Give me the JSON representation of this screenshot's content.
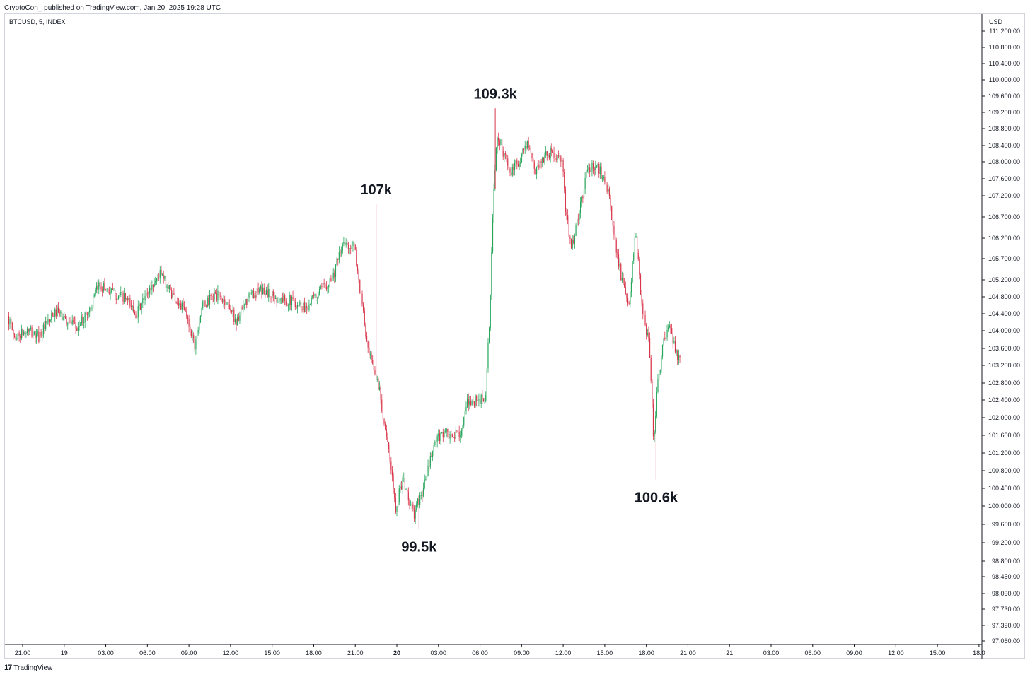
{
  "header": {
    "caption": "CryptoCon_ published on TradingView.com, Jan 20, 2025 19:28 UTC",
    "symbol": "BTCUSD, 5, INDEX",
    "currency": "USD"
  },
  "footer": {
    "brand": "TradingView",
    "logo": "tradingview-logo-icon"
  },
  "colors": {
    "up": "#26a65b",
    "down": "#d9364b",
    "axis": "#131722",
    "grid": "#e0e3eb"
  },
  "chart_data": {
    "type": "candlestick",
    "title": "",
    "xlabel": "",
    "ylabel": "",
    "y_tick_labels": [
      "111,200.00",
      "110,800.00",
      "110,400.00",
      "110,000.00",
      "109,600.00",
      "109,200.00",
      "108,800.00",
      "108,400.00",
      "108,000.00",
      "107,600.00",
      "107,200.00",
      "106,700.00",
      "106,200.00",
      "105,700.00",
      "105,200.00",
      "104,800.00",
      "104,400.00",
      "104,000.00",
      "103,600.00",
      "103,200.00",
      "102,800.00",
      "102,400.00",
      "102,000.00",
      "101,600.00",
      "101,200.00",
      "100,800.00",
      "100,400.00",
      "100,000.00",
      "99,600.00",
      "99,200.00",
      "98,800.00",
      "98,450.00",
      "98,090.00",
      "97,730.00",
      "97,390.00",
      "97,060.00"
    ],
    "y_ticks": [
      111200,
      110800,
      110400,
      110000,
      109600,
      109200,
      108800,
      108400,
      108000,
      107600,
      107200,
      106700,
      106200,
      105700,
      105200,
      104800,
      104400,
      104000,
      103600,
      103200,
      102800,
      102400,
      102000,
      101600,
      101200,
      100800,
      100400,
      100000,
      99600,
      99200,
      98800,
      98450,
      98090,
      97730,
      97390,
      97060
    ],
    "x_ticks": [
      {
        "hour": 21,
        "label": "21:00",
        "bold": false
      },
      {
        "hour": 24,
        "label": "19",
        "bold": false
      },
      {
        "hour": 27,
        "label": "03:00",
        "bold": false
      },
      {
        "hour": 30,
        "label": "06:00",
        "bold": false
      },
      {
        "hour": 33,
        "label": "09:00",
        "bold": false
      },
      {
        "hour": 36,
        "label": "12:00",
        "bold": false
      },
      {
        "hour": 39,
        "label": "15:00",
        "bold": false
      },
      {
        "hour": 42,
        "label": "18:00",
        "bold": false
      },
      {
        "hour": 45,
        "label": "21:00",
        "bold": false
      },
      {
        "hour": 48,
        "label": "20",
        "bold": true
      },
      {
        "hour": 51,
        "label": "03:00",
        "bold": false
      },
      {
        "hour": 54,
        "label": "06:00",
        "bold": false
      },
      {
        "hour": 57,
        "label": "09:00",
        "bold": false
      },
      {
        "hour": 60,
        "label": "12:00",
        "bold": false
      },
      {
        "hour": 63,
        "label": "15:00",
        "bold": false
      },
      {
        "hour": 66,
        "label": "18:00",
        "bold": false
      },
      {
        "hour": 69,
        "label": "21:00",
        "bold": false
      },
      {
        "hour": 72,
        "label": "21",
        "bold": false
      },
      {
        "hour": 75,
        "label": "03:00",
        "bold": false
      },
      {
        "hour": 78,
        "label": "06:00",
        "bold": false
      },
      {
        "hour": 81,
        "label": "09:00",
        "bold": false
      },
      {
        "hour": 84,
        "label": "12:00",
        "bold": false
      },
      {
        "hour": 87,
        "label": "15:00",
        "bold": false
      },
      {
        "hour": 90,
        "label": "18:0",
        "bold": false
      }
    ],
    "price_path": [
      {
        "hour": 20.0,
        "price": 104350
      },
      {
        "hour": 20.5,
        "price": 103850
      },
      {
        "hour": 21.5,
        "price": 104000
      },
      {
        "hour": 22.2,
        "price": 103850
      },
      {
        "hour": 23.5,
        "price": 104450
      },
      {
        "hour": 25.0,
        "price": 104050
      },
      {
        "hour": 26.0,
        "price": 104550
      },
      {
        "hour": 26.6,
        "price": 105100
      },
      {
        "hour": 27.5,
        "price": 104900
      },
      {
        "hour": 28.5,
        "price": 104750
      },
      {
        "hour": 29.3,
        "price": 104400
      },
      {
        "hour": 30.2,
        "price": 104950
      },
      {
        "hour": 31.0,
        "price": 105350
      },
      {
        "hour": 32.0,
        "price": 104800
      },
      {
        "hour": 32.8,
        "price": 104450
      },
      {
        "hour": 33.5,
        "price": 103700
      },
      {
        "hour": 34.0,
        "price": 104550
      },
      {
        "hour": 35.0,
        "price": 104850
      },
      {
        "hour": 36.0,
        "price": 104600
      },
      {
        "hour": 36.5,
        "price": 104200
      },
      {
        "hour": 37.5,
        "price": 104850
      },
      {
        "hour": 38.5,
        "price": 104950
      },
      {
        "hour": 39.5,
        "price": 104750
      },
      {
        "hour": 40.5,
        "price": 104700
      },
      {
        "hour": 41.5,
        "price": 104550
      },
      {
        "hour": 42.5,
        "price": 104900
      },
      {
        "hour": 43.5,
        "price": 105300
      },
      {
        "hour": 44.2,
        "price": 106050
      },
      {
        "hour": 45.0,
        "price": 106000
      },
      {
        "hour": 45.5,
        "price": 104800
      },
      {
        "hour": 46.0,
        "price": 103500
      },
      {
        "hour": 46.8,
        "price": 102700
      },
      {
        "hour": 47.5,
        "price": 101200
      },
      {
        "hour": 48.0,
        "price": 100000
      },
      {
        "hour": 48.5,
        "price": 100600
      },
      {
        "hour": 49.3,
        "price": 99800
      },
      {
        "hour": 50.0,
        "price": 100400
      },
      {
        "hour": 50.8,
        "price": 101400
      },
      {
        "hour": 51.5,
        "price": 101700
      },
      {
        "hour": 52.0,
        "price": 101500
      },
      {
        "hour": 52.8,
        "price": 101750
      },
      {
        "hour": 53.2,
        "price": 102350
      },
      {
        "hour": 54.0,
        "price": 102400
      },
      {
        "hour": 54.5,
        "price": 102450
      },
      {
        "hour": 54.8,
        "price": 104500
      },
      {
        "hour": 55.0,
        "price": 106700
      },
      {
        "hour": 55.3,
        "price": 108700
      },
      {
        "hour": 55.8,
        "price": 108200
      },
      {
        "hour": 56.3,
        "price": 107700
      },
      {
        "hour": 57.0,
        "price": 108100
      },
      {
        "hour": 57.5,
        "price": 108500
      },
      {
        "hour": 58.0,
        "price": 107800
      },
      {
        "hour": 59.0,
        "price": 108250
      },
      {
        "hour": 60.0,
        "price": 108000
      },
      {
        "hour": 60.3,
        "price": 106700
      },
      {
        "hour": 60.7,
        "price": 106000
      },
      {
        "hour": 61.2,
        "price": 106700
      },
      {
        "hour": 61.8,
        "price": 107800
      },
      {
        "hour": 62.5,
        "price": 107900
      },
      {
        "hour": 63.2,
        "price": 107550
      },
      {
        "hour": 63.7,
        "price": 106400
      },
      {
        "hour": 64.3,
        "price": 105200
      },
      {
        "hour": 64.8,
        "price": 104500
      },
      {
        "hour": 65.3,
        "price": 106350
      },
      {
        "hour": 65.8,
        "price": 104400
      },
      {
        "hour": 66.3,
        "price": 103700
      },
      {
        "hour": 66.6,
        "price": 101500
      },
      {
        "hour": 66.9,
        "price": 102800
      },
      {
        "hour": 67.3,
        "price": 103700
      },
      {
        "hour": 67.8,
        "price": 104100
      },
      {
        "hour": 68.2,
        "price": 103500
      },
      {
        "hour": 68.5,
        "price": 103300
      }
    ],
    "extremes": [
      {
        "hour": 46.5,
        "price": 107000,
        "label": "107k",
        "type": "high"
      },
      {
        "hour": 49.6,
        "price": 99500,
        "label": "99.5k",
        "type": "low"
      },
      {
        "hour": 55.1,
        "price": 109300,
        "label": "109.3k",
        "type": "high"
      },
      {
        "hour": 66.7,
        "price": 100600,
        "label": "100.6k",
        "type": "low"
      }
    ],
    "annotations": [
      "107k",
      "109.3k",
      "99.5k",
      "100.6k"
    ]
  }
}
